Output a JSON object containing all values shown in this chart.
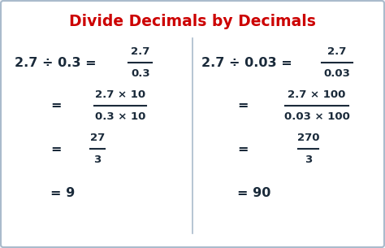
{
  "title": "Divide Decimals by Decimals",
  "title_color": "#cc0000",
  "title_fontsize": 13.5,
  "bg_color": "#f0f4f8",
  "box_color": "#ffffff",
  "box_edge_color": "#aabbcc",
  "divider_color": "#aabbcc",
  "text_color": "#1a2a3a",
  "left_col": {
    "line1_prefix": "2.7 ÷ 0.3 =",
    "line1_frac_num": "2.7",
    "line1_frac_den": "0.3",
    "line2_frac_num": "2.7 × 10",
    "line2_frac_den": "0.3 × 10",
    "line3_frac_num": "27",
    "line3_frac_den": "3",
    "line4": "= 9"
  },
  "right_col": {
    "line1_prefix": "2.7 ÷ 0.03 =",
    "line1_frac_num": "2.7",
    "line1_frac_den": "0.03",
    "line2_frac_num": "2.7 × 100",
    "line2_frac_den": "0.03 × 100",
    "line3_frac_num": "270",
    "line3_frac_den": "3",
    "line4": "= 90"
  }
}
